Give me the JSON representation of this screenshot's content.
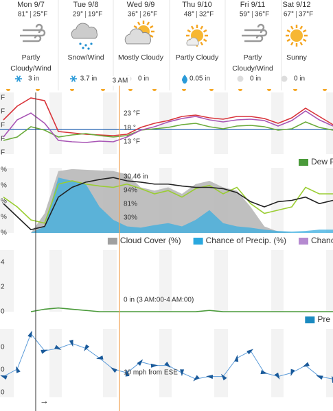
{
  "days": [
    {
      "name": "Mon 9/7",
      "high": "81°",
      "low": "25°F",
      "condition": "Partly Cloudy/Wind",
      "precip": "3 in"
    },
    {
      "name": "Tue 9/8",
      "high": "29°",
      "low": "19°F",
      "condition": "Snow/Wind",
      "precip": "3.7 in"
    },
    {
      "name": "Wed 9/9",
      "high": "36°",
      "low": "26°F",
      "condition": "Mostly Cloudy",
      "precip": "0 in"
    },
    {
      "name": "Thu 9/10",
      "high": "48°",
      "low": "32°F",
      "condition": "Partly Cloudy",
      "precip": "0.05 in"
    },
    {
      "name": "Fri 9/11",
      "high": "59°",
      "low": "36°F",
      "condition": "Partly Cloudy/Wind",
      "precip": "0 in"
    },
    {
      "name": "Sat 9/12",
      "high": "67°",
      "low": "37°F",
      "condition": "Sunny",
      "precip": "0 in"
    }
  ],
  "cursor_label": "3 AM",
  "temperature": {
    "tick_labels": [
      "F",
      "F",
      "F",
      "F",
      "F"
    ],
    "xlim": [
      -1.5,
      144
    ],
    "ylim": [
      0,
      90
    ],
    "x": [
      0,
      6,
      12,
      18,
      24,
      30,
      36,
      42,
      48,
      54,
      60,
      66,
      72,
      78,
      84,
      90,
      96,
      102,
      108,
      114,
      120,
      126,
      132,
      138,
      144
    ],
    "reference_line": {
      "value": 36,
      "color": "#2060b0"
    },
    "series": [
      {
        "label": "23 °F",
        "color": "#d9343a",
        "values": [
          50,
          70,
          82,
          78,
          33,
          31,
          29,
          28,
          27,
          29,
          39,
          45,
          49,
          55,
          57,
          53,
          51,
          55,
          55,
          52,
          45,
          53,
          67,
          55,
          43
        ]
      },
      {
        "label": "18 °",
        "color": "#6aab3a",
        "values": [
          20,
          25,
          40,
          35,
          25,
          28,
          30,
          27,
          25,
          27,
          35,
          37,
          39,
          43,
          45,
          40,
          37,
          41,
          42,
          40,
          35,
          37,
          47,
          39,
          35
        ]
      },
      {
        "label": "13 °F",
        "color": "#a855b5",
        "values": [
          25,
          50,
          60,
          45,
          20,
          18,
          17,
          19,
          18,
          25,
          35,
          40,
          47,
          52,
          55,
          50,
          47,
          50,
          51,
          49,
          41,
          49,
          63,
          50,
          41
        ]
      }
    ],
    "legend": [
      {
        "name": "Dew P",
        "color": "#4a9a3a"
      }
    ]
  },
  "sky": {
    "tick_labels": [
      "%",
      "%",
      "%",
      "%",
      "%"
    ],
    "xlim": [
      -1.5,
      144
    ],
    "ylim": [
      0,
      100
    ],
    "x": [
      0,
      6,
      12,
      18,
      24,
      30,
      36,
      42,
      48,
      54,
      60,
      66,
      72,
      78,
      84,
      90,
      96,
      102,
      108,
      114,
      120,
      126,
      132,
      138,
      144
    ],
    "cloud_cover": {
      "color": "#b4b4b4",
      "values": [
        0,
        0,
        0,
        30,
        95,
        98,
        97,
        96,
        95,
        90,
        70,
        65,
        70,
        60,
        75,
        80,
        70,
        65,
        40,
        10,
        2,
        0,
        0,
        0,
        0
      ]
    },
    "precip_chance": {
      "label": "30%",
      "color": "#3aaee0",
      "values": [
        0,
        0,
        0,
        10,
        85,
        80,
        75,
        40,
        20,
        10,
        8,
        12,
        15,
        10,
        20,
        35,
        15,
        10,
        8,
        5,
        3,
        2,
        3,
        5,
        5
      ]
    },
    "humidity": {
      "label": "81%",
      "color": "#9acd32",
      "values": [
        55,
        40,
        20,
        15,
        75,
        80,
        75,
        72,
        70,
        75,
        68,
        60,
        65,
        55,
        68,
        73,
        60,
        70,
        45,
        30,
        35,
        40,
        70,
        60,
        60
      ]
    },
    "pressure": {
      "label": "30.46 in",
      "color": "#222222",
      "values": [
        45,
        25,
        5,
        10,
        55,
        70,
        78,
        82,
        85,
        80,
        78,
        75,
        75,
        72,
        70,
        70,
        68,
        62,
        48,
        40,
        48,
        50,
        55,
        45,
        50
      ]
    },
    "cloud_label": "94%",
    "legend": [
      {
        "name": "Cloud Cover (%)",
        "color": "#a0a0a0"
      },
      {
        "name": "Chance of Precip. (%)",
        "color": "#29a8df"
      },
      {
        "name": "Chance (",
        "color": "#b58ad0"
      }
    ]
  },
  "precip": {
    "yticks": [
      4,
      2,
      0
    ],
    "xlim": [
      -1.5,
      144
    ],
    "ylim": [
      0,
      5
    ],
    "x": [
      0,
      6,
      12,
      18,
      24,
      30,
      36,
      42,
      48,
      54,
      60,
      66,
      72,
      78,
      84,
      90,
      96,
      102,
      108,
      114,
      120,
      126,
      132,
      138,
      144
    ],
    "color": "#4a9a3a",
    "values": [
      null,
      null,
      0,
      0.2,
      0.3,
      0.2,
      0.1,
      0,
      0,
      0,
      0,
      0,
      0,
      0,
      0,
      0.1,
      0,
      0,
      0,
      0,
      0,
      0,
      0,
      0,
      0
    ],
    "label": "0 in (3 AM:00-4 AM:00)",
    "legend": [
      {
        "name": "Pre",
        "color": "#1a8ac0"
      }
    ]
  },
  "wind": {
    "tick_labels": [
      "0",
      "0",
      "0"
    ],
    "xlim": [
      -1.5,
      144
    ],
    "ylim": [
      0,
      28
    ],
    "x": [
      0,
      6,
      12,
      18,
      24,
      30,
      36,
      42,
      48,
      54,
      60,
      66,
      72,
      78,
      84,
      90,
      96,
      102,
      108,
      114,
      120,
      126,
      132,
      138,
      144
    ],
    "color": "#5a9ad8",
    "values": [
      8.5,
      11.5,
      26,
      19,
      20,
      22,
      20,
      16,
      11.5,
      10,
      14.5,
      13,
      13,
      10,
      7.5,
      8.5,
      8.5,
      16,
      19,
      10,
      8.5,
      10,
      13,
      8.5,
      7.5
    ],
    "label": "10 mph from ESE"
  },
  "scroll_arrow": "→"
}
